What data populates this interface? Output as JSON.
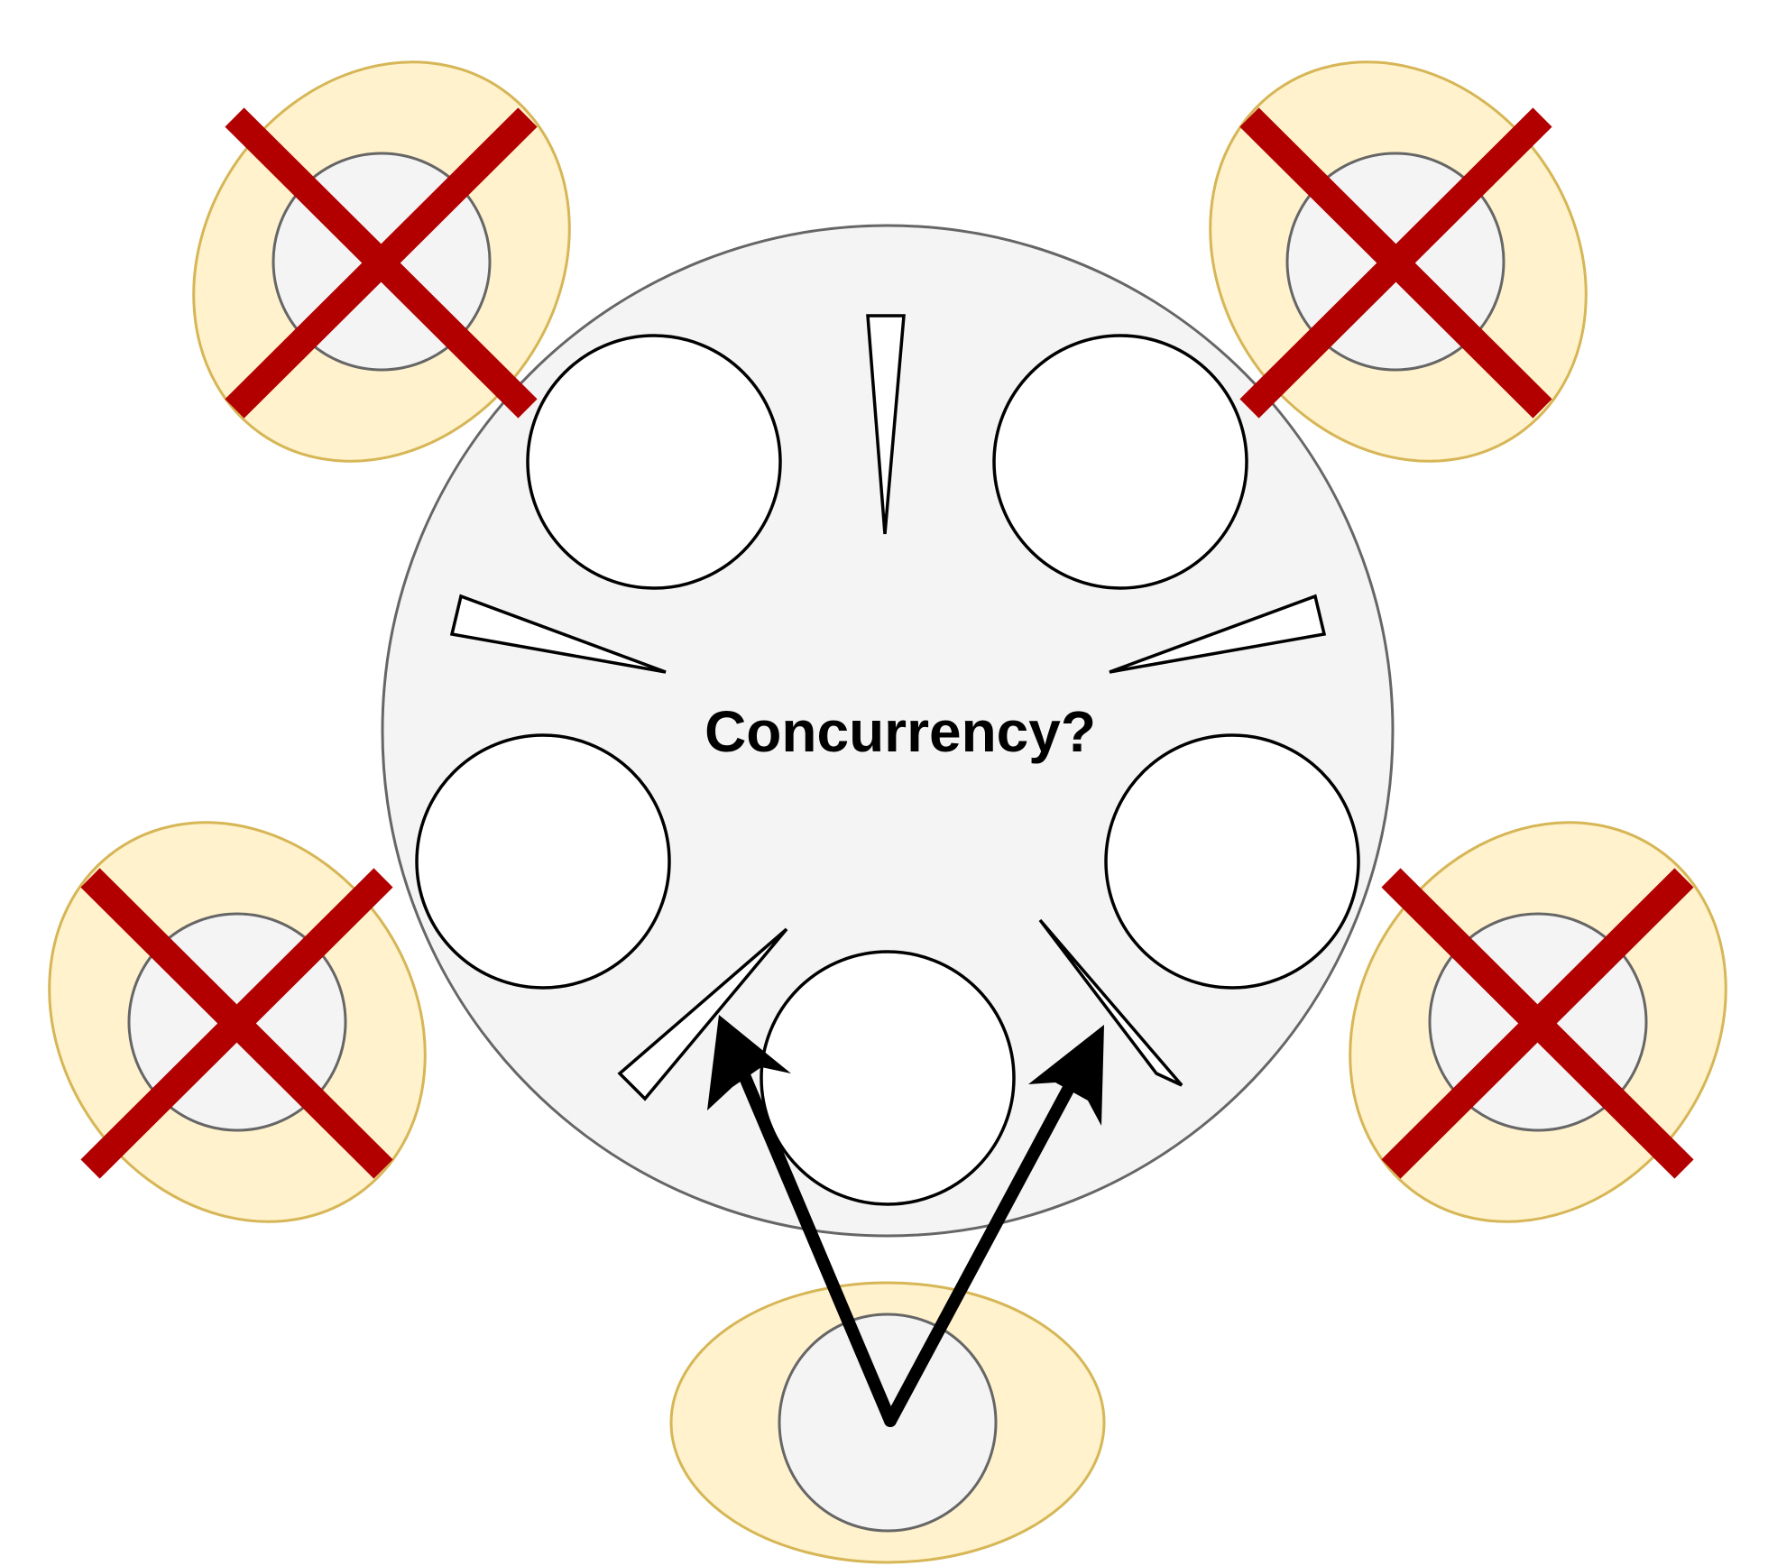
{
  "title": "Concurrency?",
  "philosophers": [
    {
      "id": "top-left",
      "state": "blocked"
    },
    {
      "id": "top-right",
      "state": "blocked"
    },
    {
      "id": "left",
      "state": "blocked"
    },
    {
      "id": "right",
      "state": "blocked"
    },
    {
      "id": "bottom",
      "state": "eating"
    }
  ],
  "plate_count": 5,
  "fork_count": 5,
  "colors": {
    "table_fill": "#f4f4f4",
    "table_stroke": "#666666",
    "halo_fill": "#fff2cc",
    "halo_stroke": "#d6b656",
    "cross": "#b20000",
    "arrow": "#000000",
    "plate_fill": "#ffffff",
    "plate_stroke": "#000000"
  }
}
